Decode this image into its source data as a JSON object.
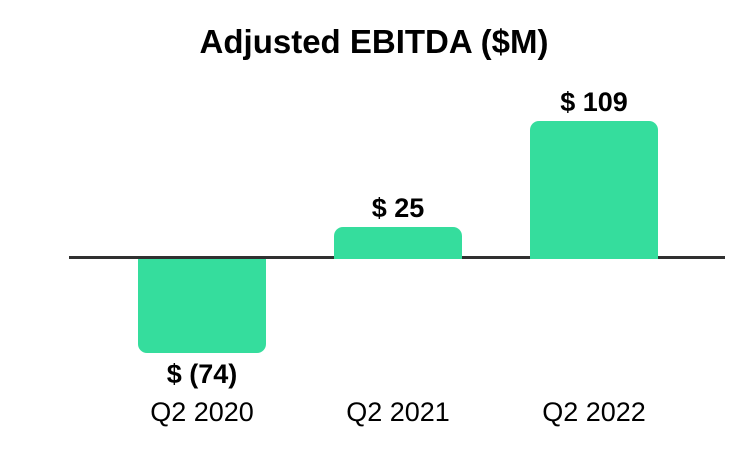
{
  "chart_data": {
    "type": "bar",
    "title": "Adjusted EBITDA ($M)",
    "categories": [
      "Q2 2020",
      "Q2 2021",
      "Q2 2022"
    ],
    "values": [
      -74,
      25,
      109
    ],
    "value_labels": [
      "$ (74)",
      "$ 25",
      "$ 109"
    ],
    "series_name": "Adjusted EBITDA",
    "xlabel": "",
    "ylabel": "",
    "baseline": 0,
    "ylim": [
      -100,
      140
    ],
    "gridlines": false,
    "legend": false,
    "bar_color": "#35dd9d",
    "axis_line_color": "#303030",
    "text_color": "#000000",
    "background_color": "#ffffff"
  }
}
